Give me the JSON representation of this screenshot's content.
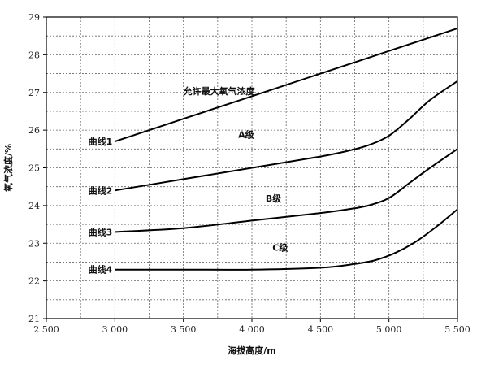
{
  "chart_data": {
    "type": "line",
    "xlabel": "海拔高度/m",
    "ylabel": "氧气浓度/%",
    "xlim": [
      2500,
      5500
    ],
    "ylim": [
      21,
      29
    ],
    "xticks": [
      2500,
      3000,
      3500,
      4000,
      4500,
      5000,
      5500
    ],
    "xtick_labels": [
      "2 500",
      "3 000",
      "3 500",
      "4 000",
      "4 500",
      "5 000",
      "5 500"
    ],
    "yticks": [
      21,
      22,
      23,
      24,
      25,
      26,
      27,
      28,
      29
    ],
    "ytick_labels": [
      "21",
      "22",
      "23",
      "24",
      "25",
      "26",
      "27",
      "28",
      "29"
    ],
    "x_minor_step": 250,
    "y_minor_step": 0.5,
    "grid": true,
    "series": [
      {
        "name": "曲线1",
        "x": [
          3000,
          3500,
          4000,
          4500,
          5000,
          5500
        ],
        "y": [
          25.7,
          26.3,
          26.9,
          27.5,
          28.1,
          28.7
        ]
      },
      {
        "name": "曲线2",
        "x": [
          3000,
          3500,
          4000,
          4500,
          4700,
          4850,
          5000,
          5150,
          5300,
          5500
        ],
        "y": [
          24.4,
          24.7,
          25.0,
          25.3,
          25.45,
          25.6,
          25.85,
          26.3,
          26.8,
          27.3
        ]
      },
      {
        "name": "曲线3",
        "x": [
          3000,
          3500,
          4000,
          4500,
          4700,
          4850,
          5000,
          5150,
          5300,
          5500
        ],
        "y": [
          23.3,
          23.4,
          23.6,
          23.8,
          23.9,
          24.0,
          24.2,
          24.6,
          25.0,
          25.5
        ]
      },
      {
        "name": "曲线4",
        "x": [
          3000,
          3500,
          4000,
          4500,
          4750,
          4900,
          5050,
          5200,
          5350,
          5500
        ],
        "y": [
          22.3,
          22.3,
          22.3,
          22.35,
          22.45,
          22.55,
          22.75,
          23.05,
          23.45,
          23.9
        ]
      }
    ],
    "annotations": [
      {
        "text": "允许最大氧气浓度",
        "x": 3500,
        "y": 26.95
      },
      {
        "text": "A级",
        "x": 3900,
        "y": 25.8
      },
      {
        "text": "B级",
        "x": 4100,
        "y": 24.1
      },
      {
        "text": "C级",
        "x": 4150,
        "y": 22.8
      }
    ]
  }
}
